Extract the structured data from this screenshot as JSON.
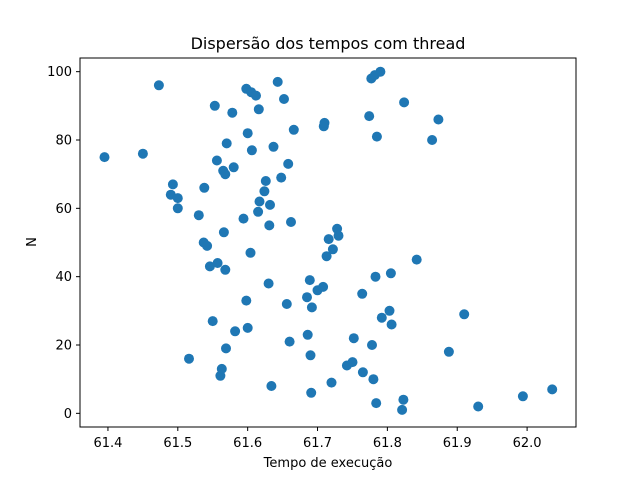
{
  "chart_data": {
    "type": "scatter",
    "title": "Dispersão dos tempos com thread",
    "xlabel": "Tempo de execução",
    "ylabel": "N",
    "xlim": [
      61.36,
      62.07
    ],
    "ylim": [
      -4,
      104
    ],
    "xticks": [
      "61.4",
      "61.5",
      "61.6",
      "61.7",
      "61.8",
      "61.9",
      "62.0"
    ],
    "yticks": [
      "0",
      "20",
      "40",
      "60",
      "80",
      "100"
    ],
    "grid": false,
    "marker_color": "#1f77b4",
    "points": [
      {
        "x": 61.395,
        "y": 75
      },
      {
        "x": 61.45,
        "y": 76
      },
      {
        "x": 61.473,
        "y": 96
      },
      {
        "x": 61.49,
        "y": 64
      },
      {
        "x": 61.493,
        "y": 67
      },
      {
        "x": 61.5,
        "y": 63
      },
      {
        "x": 61.5,
        "y": 60
      },
      {
        "x": 61.516,
        "y": 16
      },
      {
        "x": 61.53,
        "y": 58
      },
      {
        "x": 61.537,
        "y": 50
      },
      {
        "x": 61.538,
        "y": 66
      },
      {
        "x": 61.542,
        "y": 49
      },
      {
        "x": 61.546,
        "y": 43
      },
      {
        "x": 61.55,
        "y": 27
      },
      {
        "x": 61.553,
        "y": 90
      },
      {
        "x": 61.556,
        "y": 74
      },
      {
        "x": 61.557,
        "y": 44
      },
      {
        "x": 61.561,
        "y": 11
      },
      {
        "x": 61.563,
        "y": 13
      },
      {
        "x": 61.565,
        "y": 71
      },
      {
        "x": 61.566,
        "y": 53
      },
      {
        "x": 61.568,
        "y": 42
      },
      {
        "x": 61.568,
        "y": 70
      },
      {
        "x": 61.569,
        "y": 19
      },
      {
        "x": 61.57,
        "y": 79
      },
      {
        "x": 61.578,
        "y": 88
      },
      {
        "x": 61.58,
        "y": 72
      },
      {
        "x": 61.582,
        "y": 24
      },
      {
        "x": 61.594,
        "y": 57
      },
      {
        "x": 61.598,
        "y": 33
      },
      {
        "x": 61.598,
        "y": 95
      },
      {
        "x": 61.6,
        "y": 25
      },
      {
        "x": 61.6,
        "y": 82
      },
      {
        "x": 61.604,
        "y": 47
      },
      {
        "x": 61.605,
        "y": 94
      },
      {
        "x": 61.606,
        "y": 77
      },
      {
        "x": 61.612,
        "y": 93
      },
      {
        "x": 61.615,
        "y": 59
      },
      {
        "x": 61.616,
        "y": 89
      },
      {
        "x": 61.617,
        "y": 62
      },
      {
        "x": 61.624,
        "y": 65
      },
      {
        "x": 61.626,
        "y": 68
      },
      {
        "x": 61.63,
        "y": 38
      },
      {
        "x": 61.631,
        "y": 55
      },
      {
        "x": 61.632,
        "y": 61
      },
      {
        "x": 61.634,
        "y": 8
      },
      {
        "x": 61.637,
        "y": 78
      },
      {
        "x": 61.643,
        "y": 97
      },
      {
        "x": 61.648,
        "y": 69
      },
      {
        "x": 61.652,
        "y": 92
      },
      {
        "x": 61.656,
        "y": 32
      },
      {
        "x": 61.658,
        "y": 73
      },
      {
        "x": 61.66,
        "y": 21
      },
      {
        "x": 61.662,
        "y": 56
      },
      {
        "x": 61.666,
        "y": 83
      },
      {
        "x": 61.685,
        "y": 34
      },
      {
        "x": 61.686,
        "y": 23
      },
      {
        "x": 61.689,
        "y": 39
      },
      {
        "x": 61.69,
        "y": 17
      },
      {
        "x": 61.691,
        "y": 6
      },
      {
        "x": 61.692,
        "y": 31
      },
      {
        "x": 61.7,
        "y": 36
      },
      {
        "x": 61.708,
        "y": 37
      },
      {
        "x": 61.709,
        "y": 84
      },
      {
        "x": 61.71,
        "y": 85
      },
      {
        "x": 61.713,
        "y": 46
      },
      {
        "x": 61.716,
        "y": 51
      },
      {
        "x": 61.72,
        "y": 9
      },
      {
        "x": 61.722,
        "y": 48
      },
      {
        "x": 61.728,
        "y": 54
      },
      {
        "x": 61.73,
        "y": 52
      },
      {
        "x": 61.742,
        "y": 14
      },
      {
        "x": 61.75,
        "y": 15
      },
      {
        "x": 61.752,
        "y": 22
      },
      {
        "x": 61.764,
        "y": 35
      },
      {
        "x": 61.765,
        "y": 12
      },
      {
        "x": 61.774,
        "y": 87
      },
      {
        "x": 61.777,
        "y": 98
      },
      {
        "x": 61.778,
        "y": 20
      },
      {
        "x": 61.78,
        "y": 10
      },
      {
        "x": 61.782,
        "y": 99
      },
      {
        "x": 61.783,
        "y": 40
      },
      {
        "x": 61.784,
        "y": 3
      },
      {
        "x": 61.785,
        "y": 81
      },
      {
        "x": 61.79,
        "y": 100
      },
      {
        "x": 61.792,
        "y": 28
      },
      {
        "x": 61.803,
        "y": 30
      },
      {
        "x": 61.805,
        "y": 41
      },
      {
        "x": 61.806,
        "y": 26
      },
      {
        "x": 61.821,
        "y": 1
      },
      {
        "x": 61.823,
        "y": 4
      },
      {
        "x": 61.824,
        "y": 91
      },
      {
        "x": 61.842,
        "y": 45
      },
      {
        "x": 61.864,
        "y": 80
      },
      {
        "x": 61.873,
        "y": 86
      },
      {
        "x": 61.888,
        "y": 18
      },
      {
        "x": 61.91,
        "y": 29
      },
      {
        "x": 61.93,
        "y": 2
      },
      {
        "x": 61.994,
        "y": 5
      },
      {
        "x": 62.036,
        "y": 7
      }
    ]
  }
}
